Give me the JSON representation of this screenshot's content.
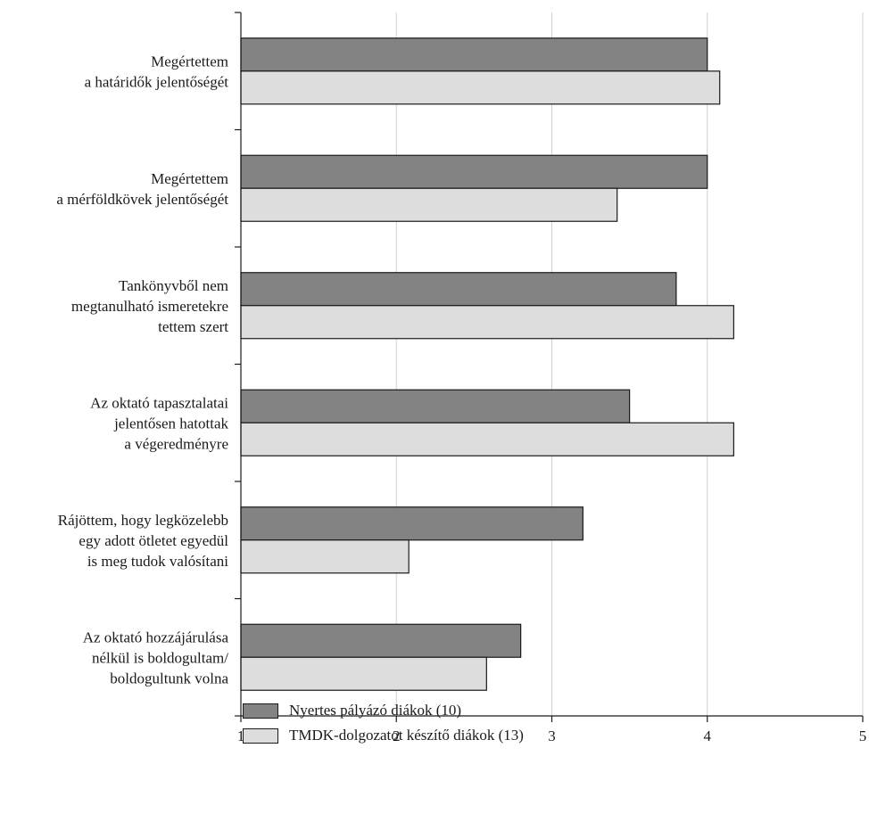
{
  "chart_data": {
    "type": "bar",
    "orientation": "horizontal",
    "title": "",
    "xlabel": "",
    "ylabel": "",
    "xlim": [
      1,
      5
    ],
    "ticks": [
      1,
      2,
      3,
      4,
      5
    ],
    "tick_labels": [
      "1",
      "2",
      "3",
      "4",
      "5"
    ],
    "grid": "vertical",
    "legend_position": "bottom",
    "categories": [
      [
        "Megértettem",
        "a határidők jelentőségét"
      ],
      [
        "Megértettem",
        "a mérföldkövek jelentőségét"
      ],
      [
        "Tankönyvből nem",
        "megtanulható ismeretekre",
        "tettem szert"
      ],
      [
        "Az oktató tapasztalatai",
        "jelentősen hatottak",
        "a végeredményre"
      ],
      [
        "Rájöttem, hogy legközelebb",
        "egy adott ötletet egyedül",
        "is meg tudok valósítani"
      ],
      [
        "Az oktató hozzájárulása",
        "nélkül is boldogultam/",
        "boldogultunk volna"
      ]
    ],
    "series": [
      {
        "name": "Nyertes pályázó diákok (10)",
        "color": "#838383",
        "values": [
          4.0,
          4.0,
          3.8,
          3.5,
          3.2,
          2.8
        ]
      },
      {
        "name": "TMDK-dolgozatot készítő diákok (13)",
        "color": "#dddddd",
        "values": [
          4.08,
          3.42,
          4.17,
          4.17,
          2.08,
          2.58
        ]
      }
    ]
  }
}
